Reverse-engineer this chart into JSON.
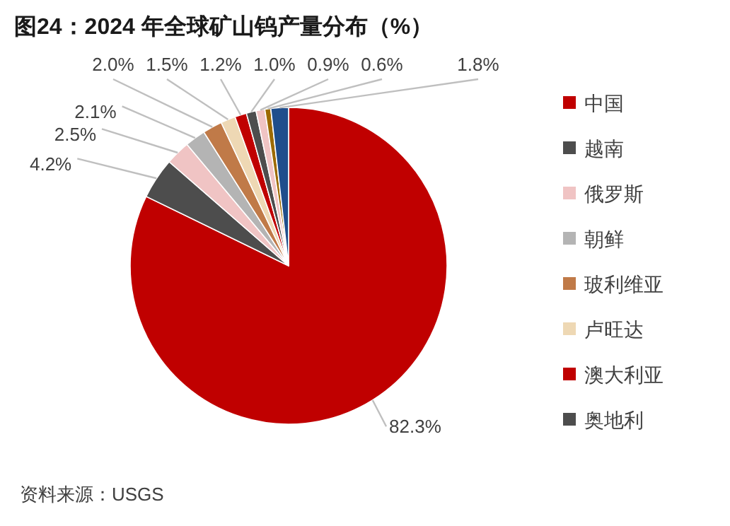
{
  "chart_data": {
    "type": "pie",
    "title": "图24：2024 年全球矿山钨产量分布（%）",
    "categories": [
      "中国",
      "越南",
      "俄罗斯",
      "朝鲜",
      "玻利维亚",
      "卢旺达",
      "澳大利亚",
      "奥地利",
      null,
      null,
      null
    ],
    "values": [
      82.3,
      4.2,
      2.5,
      2.1,
      2.0,
      1.5,
      1.2,
      1.0,
      0.9,
      0.6,
      1.8
    ],
    "colors": [
      "#c00000",
      "#4d4d4d",
      "#f0c4c4",
      "#b4b4b4",
      "#c07a48",
      "#eed8b4",
      "#c00000",
      "#4d4d4d",
      "#f0c4c4",
      "#9c6a00",
      "#1f4e8c"
    ],
    "value_labels": [
      "82.3%",
      "4.2%",
      "2.5%",
      "2.1%",
      "2.0%",
      "1.5%",
      "1.2%",
      "1.0%",
      "0.9%",
      "0.6%",
      "1.8%"
    ],
    "legend": "right",
    "annotations": [
      "资料来源：USGS"
    ]
  }
}
